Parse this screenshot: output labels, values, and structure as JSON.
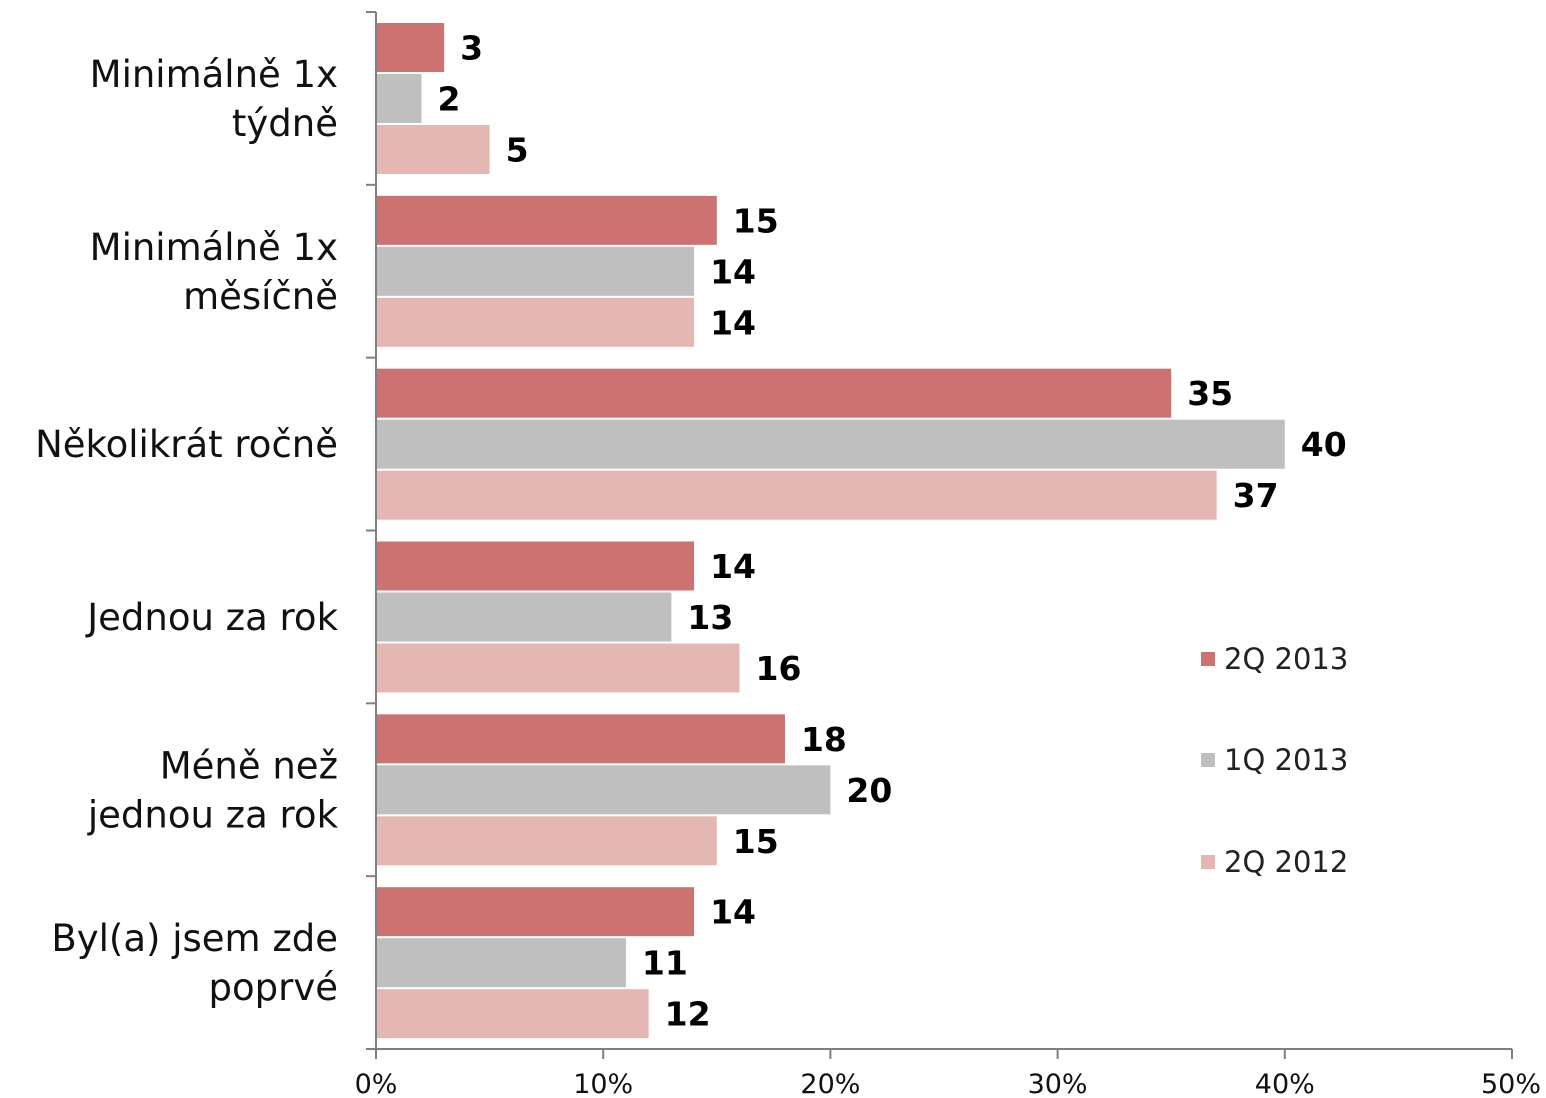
{
  "chart_data": {
    "type": "bar",
    "orientation": "horizontal",
    "categories": [
      [
        "Minimálně 1x",
        "týdně"
      ],
      [
        "Minimálně 1x",
        "měsíčně"
      ],
      [
        "Několikrát ročně"
      ],
      [
        "Jednou za rok"
      ],
      [
        "Méně než",
        "jednou za rok"
      ],
      [
        "Byl(a) jsem zde",
        "poprvé"
      ]
    ],
    "series": [
      {
        "name": "2Q 2013",
        "color": "#CC7371",
        "values": [
          3,
          15,
          35,
          14,
          18,
          14
        ],
        "value_labels": [
          "3",
          "15",
          "35",
          "14",
          "18",
          "14"
        ]
      },
      {
        "name": "1Q 2013",
        "color": "#BFBFBF",
        "values": [
          2,
          14,
          40,
          13,
          20,
          11
        ],
        "value_labels": [
          "2",
          "14",
          "40",
          "13",
          "20",
          "11"
        ]
      },
      {
        "name": "2Q 2012",
        "color": "#E5B7B3",
        "values": [
          5,
          14,
          37,
          16,
          15,
          12
        ],
        "value_labels": [
          "5",
          "14",
          "37",
          "16",
          "15",
          "12"
        ]
      }
    ],
    "xlim": [
      0,
      50
    ],
    "xticks": [
      0,
      10,
      20,
      30,
      40,
      50
    ],
    "xtick_labels": [
      "0%",
      "10%",
      "20%",
      "30%",
      "40%",
      "50%"
    ],
    "grid": false,
    "legend_position": "right"
  }
}
